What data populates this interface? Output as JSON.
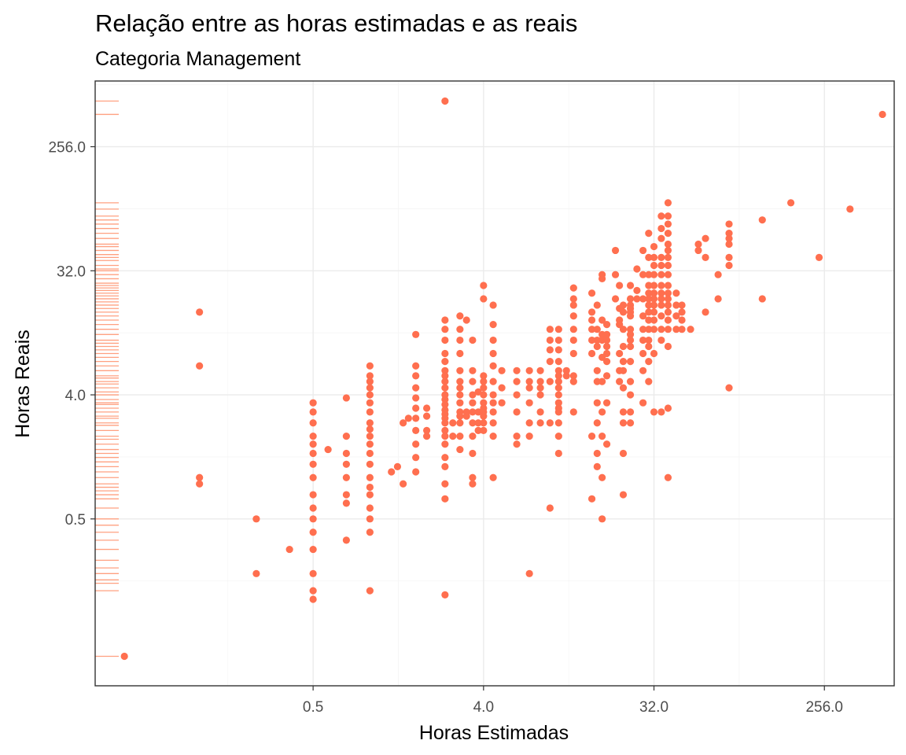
{
  "chart_data": {
    "type": "scatter",
    "title": "Relação entre as horas estimadas e as reais",
    "subtitle": "Categoria Management",
    "xlabel": "Horas Estimadas",
    "ylabel": "Horas Reais",
    "x_scale": "log2",
    "y_scale": "log2",
    "xlim": [
      0.035,
      600
    ],
    "ylim": [
      0.0305,
      770
    ],
    "x_ticks": [
      0.5,
      4.0,
      32.0,
      256.0
    ],
    "x_tick_labels": [
      "0.5",
      "4.0",
      "32.0",
      "256.0"
    ],
    "y_ticks": [
      0.5,
      4.0,
      32.0,
      256.0
    ],
    "y_tick_labels": [
      "0.5",
      "4.0",
      "32.0",
      "256.0"
    ],
    "grid": true,
    "rug": "y",
    "point_color": "#FF6F4F",
    "rug_color": "#FFA080",
    "points": [
      [
        0.05,
        0.05
      ],
      [
        0.125,
        16
      ],
      [
        0.125,
        6.5
      ],
      [
        0.125,
        1.0
      ],
      [
        0.125,
        0.9
      ],
      [
        0.25,
        0.5
      ],
      [
        0.25,
        0.2
      ],
      [
        0.375,
        0.3
      ],
      [
        0.5,
        3.5
      ],
      [
        0.5,
        3.0
      ],
      [
        0.5,
        2.5
      ],
      [
        0.5,
        2.0
      ],
      [
        0.5,
        1.75
      ],
      [
        0.5,
        1.5
      ],
      [
        0.5,
        1.25
      ],
      [
        0.5,
        1.0
      ],
      [
        0.5,
        0.75
      ],
      [
        0.5,
        0.6
      ],
      [
        0.5,
        0.5
      ],
      [
        0.5,
        0.4
      ],
      [
        0.5,
        0.3
      ],
      [
        0.5,
        0.2
      ],
      [
        0.5,
        0.15
      ],
      [
        0.5,
        0.13
      ],
      [
        0.6,
        1.6
      ],
      [
        0.75,
        2.0
      ],
      [
        0.75,
        1.5
      ],
      [
        0.75,
        1.25
      ],
      [
        0.75,
        1.0
      ],
      [
        0.75,
        0.75
      ],
      [
        0.75,
        0.35
      ],
      [
        0.75,
        0.65
      ],
      [
        0.75,
        3.8
      ],
      [
        1.0,
        6.5
      ],
      [
        1.0,
        5.5
      ],
      [
        1.0,
        5.0
      ],
      [
        1.0,
        4.5
      ],
      [
        1.0,
        4.0
      ],
      [
        1.0,
        3.5
      ],
      [
        1.0,
        3.0
      ],
      [
        1.0,
        2.5
      ],
      [
        1.0,
        2.25
      ],
      [
        1.0,
        2.0
      ],
      [
        1.0,
        1.75
      ],
      [
        1.0,
        1.5
      ],
      [
        1.0,
        1.25
      ],
      [
        1.0,
        1.0
      ],
      [
        1.0,
        0.85
      ],
      [
        1.0,
        0.75
      ],
      [
        1.0,
        0.6
      ],
      [
        1.0,
        0.5
      ],
      [
        1.0,
        0.4
      ],
      [
        1.0,
        0.15
      ],
      [
        1.3,
        1.1
      ],
      [
        1.4,
        1.2
      ],
      [
        1.5,
        2.5
      ],
      [
        1.6,
        2.7
      ],
      [
        1.5,
        0.9
      ],
      [
        1.75,
        11.0
      ],
      [
        1.75,
        6.5
      ],
      [
        1.75,
        5.5
      ],
      [
        1.75,
        4.5
      ],
      [
        1.75,
        3.8
      ],
      [
        1.75,
        3.2
      ],
      [
        1.75,
        2.7
      ],
      [
        1.75,
        2.2
      ],
      [
        1.75,
        1.75
      ],
      [
        1.75,
        1.4
      ],
      [
        1.75,
        1.1
      ],
      [
        2.0,
        2.2
      ],
      [
        2.0,
        2.0
      ],
      [
        2.0,
        2.8
      ],
      [
        2.0,
        3.2
      ],
      [
        2.5,
        14.0
      ],
      [
        2.5,
        12.0
      ],
      [
        2.5,
        10.0
      ],
      [
        2.5,
        8.0
      ],
      [
        2.5,
        7.0
      ],
      [
        2.5,
        6.0
      ],
      [
        2.5,
        5.5
      ],
      [
        2.5,
        5.0
      ],
      [
        2.5,
        4.5
      ],
      [
        2.5,
        4.0
      ],
      [
        2.5,
        3.7
      ],
      [
        2.5,
        3.4
      ],
      [
        2.5,
        3.1
      ],
      [
        2.5,
        2.9
      ],
      [
        2.5,
        2.7
      ],
      [
        2.5,
        2.5
      ],
      [
        2.5,
        2.2
      ],
      [
        2.5,
        2.0
      ],
      [
        2.5,
        1.75
      ],
      [
        2.5,
        1.4
      ],
      [
        2.5,
        1.2
      ],
      [
        2.5,
        0.9
      ],
      [
        2.5,
        0.7
      ],
      [
        2.5,
        0.14
      ],
      [
        2.5,
        550.0
      ],
      [
        2.75,
        2.5
      ],
      [
        2.75,
        2.0
      ],
      [
        3.0,
        15.0
      ],
      [
        3.0,
        12.0
      ],
      [
        3.0,
        10.0
      ],
      [
        3.0,
        8.0
      ],
      [
        3.0,
        6.0
      ],
      [
        3.0,
        5.0
      ],
      [
        3.0,
        4.5
      ],
      [
        3.0,
        4.0
      ],
      [
        3.0,
        3.5
      ],
      [
        3.0,
        3.0
      ],
      [
        3.0,
        2.5
      ],
      [
        3.0,
        2.0
      ],
      [
        3.0,
        1.6
      ],
      [
        3.0,
        2.8
      ],
      [
        3.25,
        3.0
      ],
      [
        3.25,
        2.8
      ],
      [
        3.25,
        14.0
      ],
      [
        3.5,
        10.0
      ],
      [
        3.5,
        6.0
      ],
      [
        3.5,
        5.0
      ],
      [
        3.5,
        4.0
      ],
      [
        3.5,
        3.5
      ],
      [
        3.5,
        3.0
      ],
      [
        3.5,
        2.5
      ],
      [
        3.5,
        2.0
      ],
      [
        3.5,
        1.5
      ],
      [
        3.5,
        1.0
      ],
      [
        3.5,
        0.9
      ],
      [
        3.75,
        3.0
      ],
      [
        3.75,
        2.5
      ],
      [
        3.75,
        4.2
      ],
      [
        3.75,
        2.2
      ],
      [
        4.0,
        25.0
      ],
      [
        4.0,
        20.0
      ],
      [
        4.0,
        5.5
      ],
      [
        4.0,
        5.0
      ],
      [
        4.0,
        4.5
      ],
      [
        4.0,
        4.0
      ],
      [
        4.0,
        3.5
      ],
      [
        4.0,
        3.2
      ],
      [
        4.0,
        3.0
      ],
      [
        4.0,
        2.8
      ],
      [
        4.0,
        2.5
      ],
      [
        4.0,
        2.2
      ],
      [
        4.5,
        18.0
      ],
      [
        4.5,
        13.0
      ],
      [
        4.5,
        10.0
      ],
      [
        4.5,
        8.0
      ],
      [
        4.5,
        6.5
      ],
      [
        4.5,
        5.0
      ],
      [
        4.5,
        4.0
      ],
      [
        4.5,
        3.5
      ],
      [
        4.5,
        3.0
      ],
      [
        4.5,
        2.5
      ],
      [
        4.5,
        2.0
      ],
      [
        4.5,
        1.0
      ],
      [
        5.0,
        4.5
      ],
      [
        5.0,
        6.0
      ],
      [
        5.0,
        3.5
      ],
      [
        6.0,
        6.0
      ],
      [
        6.0,
        5.0
      ],
      [
        6.0,
        4.0
      ],
      [
        6.0,
        3.0
      ],
      [
        6.0,
        2.0
      ],
      [
        6.0,
        1.75
      ],
      [
        7.0,
        5.0
      ],
      [
        7.0,
        4.5
      ],
      [
        7.0,
        6.0
      ],
      [
        7.0,
        3.5
      ],
      [
        7.0,
        2.0
      ],
      [
        7.0,
        2.5
      ],
      [
        7.0,
        0.2
      ],
      [
        8.0,
        4.5
      ],
      [
        8.0,
        6.0
      ],
      [
        8.0,
        5.0
      ],
      [
        8.0,
        4.0
      ],
      [
        8.0,
        3.0
      ],
      [
        8.0,
        2.5
      ],
      [
        9.0,
        12.0
      ],
      [
        9.0,
        10.0
      ],
      [
        9.0,
        8.5
      ],
      [
        9.0,
        7.0
      ],
      [
        9.0,
        5.0
      ],
      [
        9.0,
        2.5
      ],
      [
        9.0,
        0.6
      ],
      [
        10.0,
        12.0
      ],
      [
        10.0,
        10.0
      ],
      [
        10.0,
        8.5
      ],
      [
        10.0,
        7.0
      ],
      [
        10.0,
        6.0
      ],
      [
        10.0,
        5.5
      ],
      [
        10.0,
        5.0
      ],
      [
        10.0,
        4.5
      ],
      [
        10.0,
        4.0
      ],
      [
        10.0,
        3.5
      ],
      [
        10.0,
        3.2
      ],
      [
        10.0,
        3.0
      ],
      [
        10.0,
        2.5
      ],
      [
        10.0,
        2.0
      ],
      [
        10.0,
        1.5
      ],
      [
        11.0,
        6.0
      ],
      [
        11.0,
        5.5
      ],
      [
        12.0,
        24.0
      ],
      [
        12.0,
        20.0
      ],
      [
        12.0,
        18.0
      ],
      [
        12.0,
        15.0
      ],
      [
        12.0,
        12.0
      ],
      [
        12.0,
        10.0
      ],
      [
        12.0,
        8.0
      ],
      [
        12.0,
        5.5
      ],
      [
        12.0,
        5.0
      ],
      [
        12.0,
        3.0
      ],
      [
        15.0,
        22.0
      ],
      [
        15.0,
        16.0
      ],
      [
        15.0,
        14.0
      ],
      [
        15.0,
        12.0
      ],
      [
        15.0,
        10.0
      ],
      [
        15.0,
        8.0
      ],
      [
        15.0,
        0.7
      ],
      [
        15.0,
        2.0
      ],
      [
        16.0,
        18.0
      ],
      [
        16.0,
        12.0
      ],
      [
        16.0,
        10.0
      ],
      [
        16.0,
        9.0
      ],
      [
        16.0,
        6.0
      ],
      [
        16.0,
        5.0
      ],
      [
        16.0,
        3.5
      ],
      [
        16.0,
        2.5
      ],
      [
        16.0,
        1.2
      ],
      [
        16.0,
        1.5
      ],
      [
        17.0,
        14.0
      ],
      [
        17.0,
        11.0
      ],
      [
        17.0,
        10.0
      ],
      [
        17.0,
        7.5
      ],
      [
        17.0,
        5.0
      ],
      [
        17.0,
        3.0
      ],
      [
        17.0,
        2.0
      ],
      [
        17.0,
        0.5
      ],
      [
        17.0,
        30.0
      ],
      [
        17.0,
        28.0
      ],
      [
        17.0,
        1.0
      ],
      [
        18.0,
        13.0
      ],
      [
        18.0,
        11.0
      ],
      [
        18.0,
        10.0
      ],
      [
        18.0,
        9.0
      ],
      [
        18.0,
        8.0
      ],
      [
        18.0,
        7.0
      ],
      [
        18.0,
        5.5
      ],
      [
        18.0,
        3.5
      ],
      [
        18.0,
        1.75
      ],
      [
        20.0,
        20.0
      ],
      [
        20.0,
        30.0
      ],
      [
        20.0,
        45.0
      ],
      [
        21.0,
        14.0
      ],
      [
        21.0,
        17.0
      ],
      [
        21.0,
        25.0
      ],
      [
        21.0,
        13.0
      ],
      [
        21.0,
        8.0
      ],
      [
        21.0,
        6.0
      ],
      [
        21.0,
        5.0
      ],
      [
        22.0,
        18.0
      ],
      [
        22.0,
        16.0
      ],
      [
        22.0,
        12.0
      ],
      [
        22.0,
        9.0
      ],
      [
        22.0,
        7.0
      ],
      [
        22.0,
        6.0
      ],
      [
        22.0,
        4.5
      ],
      [
        22.0,
        3.0
      ],
      [
        22.0,
        2.5
      ],
      [
        22.0,
        1.5
      ],
      [
        22.0,
        0.75
      ],
      [
        24.0,
        25.0
      ],
      [
        24.0,
        20.0
      ],
      [
        24.0,
        18.0
      ],
      [
        24.0,
        17.0
      ],
      [
        24.0,
        16.0
      ],
      [
        24.0,
        15.0
      ],
      [
        24.0,
        12.0
      ],
      [
        24.0,
        11.0
      ],
      [
        24.0,
        10.0
      ],
      [
        24.0,
        9.0
      ],
      [
        24.0,
        7.0
      ],
      [
        24.0,
        5.0
      ],
      [
        24.0,
        4.0
      ],
      [
        24.0,
        3.0
      ],
      [
        24.0,
        2.5
      ],
      [
        26.0,
        20.0
      ],
      [
        26.0,
        23.0
      ],
      [
        26.0,
        33.0
      ],
      [
        28.0,
        45.0
      ],
      [
        28.0,
        30.0
      ],
      [
        28.0,
        20.0
      ],
      [
        28.0,
        15.0
      ],
      [
        28.0,
        12.0
      ],
      [
        28.0,
        10.0
      ],
      [
        28.0,
        8.0
      ],
      [
        28.0,
        6.0
      ],
      [
        28.0,
        3.5
      ],
      [
        30.0,
        60.0
      ],
      [
        30.0,
        40.0
      ],
      [
        30.0,
        30.0
      ],
      [
        30.0,
        25.0
      ],
      [
        30.0,
        22.0
      ],
      [
        30.0,
        20.0
      ],
      [
        30.0,
        18.0
      ],
      [
        30.0,
        16.0
      ],
      [
        30.0,
        14.0
      ],
      [
        30.0,
        12.0
      ],
      [
        30.0,
        10.0
      ],
      [
        30.0,
        9.0
      ],
      [
        30.0,
        7.0
      ],
      [
        30.0,
        5.0
      ],
      [
        32.0,
        48.0
      ],
      [
        32.0,
        40.0
      ],
      [
        32.0,
        35.0
      ],
      [
        32.0,
        30.0
      ],
      [
        32.0,
        25.0
      ],
      [
        32.0,
        22.0
      ],
      [
        32.0,
        20.0
      ],
      [
        32.0,
        18.0
      ],
      [
        32.0,
        16.0
      ],
      [
        32.0,
        14.0
      ],
      [
        32.0,
        12.0
      ],
      [
        32.0,
        8.0
      ],
      [
        32.0,
        3.0
      ],
      [
        35.0,
        80.0
      ],
      [
        35.0,
        65.0
      ],
      [
        35.0,
        55.0
      ],
      [
        35.0,
        40.0
      ],
      [
        35.0,
        35.0
      ],
      [
        35.0,
        30.0
      ],
      [
        35.0,
        25.0
      ],
      [
        35.0,
        22.0
      ],
      [
        35.0,
        20.0
      ],
      [
        35.0,
        18.0
      ],
      [
        35.0,
        15.0
      ],
      [
        35.0,
        12.0
      ],
      [
        35.0,
        10.0
      ],
      [
        35.0,
        3.0
      ],
      [
        38.0,
        100.0
      ],
      [
        38.0,
        80.0
      ],
      [
        38.0,
        70.0
      ],
      [
        38.0,
        60.0
      ],
      [
        38.0,
        50.0
      ],
      [
        38.0,
        45.0
      ],
      [
        38.0,
        40.0
      ],
      [
        38.0,
        35.0
      ],
      [
        38.0,
        30.0
      ],
      [
        38.0,
        25.0
      ],
      [
        38.0,
        22.0
      ],
      [
        38.0,
        20.0
      ],
      [
        38.0,
        18.0
      ],
      [
        38.0,
        16.0
      ],
      [
        38.0,
        14.0
      ],
      [
        38.0,
        12.0
      ],
      [
        38.0,
        9.0
      ],
      [
        38.0,
        3.2
      ],
      [
        38.0,
        1.0
      ],
      [
        42.0,
        22.0
      ],
      [
        42.0,
        18.0
      ],
      [
        42.0,
        15.0
      ],
      [
        42.0,
        12.0
      ],
      [
        45.0,
        18.0
      ],
      [
        45.0,
        16.0
      ],
      [
        45.0,
        14.0
      ],
      [
        45.0,
        12.0
      ],
      [
        50.0,
        12.0
      ],
      [
        55.0,
        45.0
      ],
      [
        55.0,
        50.0
      ],
      [
        60.0,
        55.0
      ],
      [
        60.0,
        40.0
      ],
      [
        60.0,
        16.0
      ],
      [
        70.0,
        30.0
      ],
      [
        70.0,
        20.0
      ],
      [
        80.0,
        60.0
      ],
      [
        80.0,
        50.0
      ],
      [
        80.0,
        40.0
      ],
      [
        80.0,
        35.0
      ],
      [
        80.0,
        4.5
      ],
      [
        80.0,
        70.0
      ],
      [
        80.0,
        55.0
      ],
      [
        120.0,
        75.0
      ],
      [
        120.0,
        20.0
      ],
      [
        170.0,
        100.0
      ],
      [
        240.0,
        40.0
      ],
      [
        350.0,
        90.0
      ],
      [
        520.0,
        440.0
      ]
    ],
    "rug_values": [
      0.05,
      0.15,
      0.17,
      0.18,
      0.2,
      0.22,
      0.25,
      0.3,
      0.35,
      0.4,
      0.45,
      0.5,
      0.6,
      0.7,
      0.75,
      0.8,
      0.85,
      0.9,
      1.0,
      1.1,
      1.2,
      1.3,
      1.4,
      1.5,
      1.6,
      1.75,
      1.9,
      2.0,
      2.2,
      2.4,
      2.5,
      2.7,
      2.8,
      3.0,
      3.2,
      3.4,
      3.5,
      3.7,
      4.0,
      4.2,
      4.5,
      4.8,
      5.0,
      5.3,
      5.5,
      6.0,
      6.5,
      7.0,
      7.5,
      8.0,
      8.5,
      9.0,
      9.5,
      10.0,
      11.0,
      12.0,
      13.0,
      14.0,
      15.0,
      16.0,
      17.0,
      18.0,
      19.0,
      20.0,
      21.0,
      22.0,
      23.0,
      24.0,
      25.0,
      26.0,
      28.0,
      30.0,
      32.0,
      33.0,
      35.0,
      38.0,
      40.0,
      42.0,
      45.0,
      48.0,
      50.0,
      55.0,
      60.0,
      65.0,
      70.0,
      75.0,
      80.0,
      90.0,
      100.0,
      440.0,
      550.0
    ]
  }
}
